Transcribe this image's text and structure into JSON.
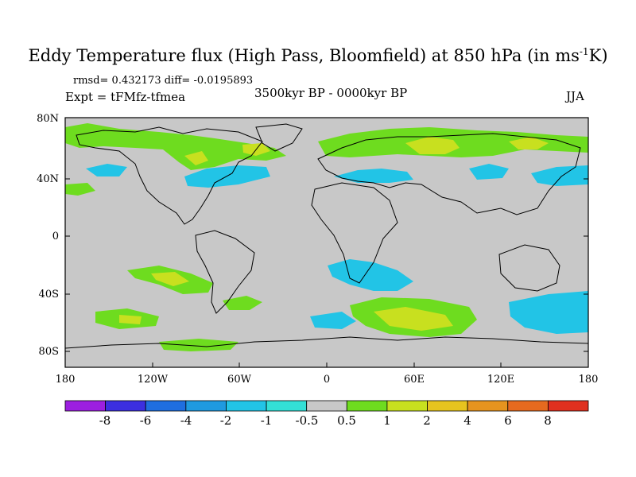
{
  "title": {
    "main": "Eddy Temperature flux (High Pass, Bloomfield) at 850 hPa (in ms",
    "sup": "-1",
    "end": "K)"
  },
  "stats": "rmsd= 0.432173 diff= -0.0195893",
  "expt": "Expt = tFMfz-tfmea",
  "period": "3500kyr BP - 0000kyr BP",
  "season": "JJA",
  "lat_labels": [
    "80N",
    "40N",
    "0",
    "40S",
    "80S"
  ],
  "lon_labels": [
    "180",
    "120W",
    "60W",
    "0",
    "60E",
    "120E",
    "180"
  ],
  "colorbar": {
    "labels": [
      "-8",
      "-6",
      "-4",
      "-2",
      "-1",
      "-0.5",
      "0.5",
      "1",
      "2",
      "4",
      "6",
      "8"
    ],
    "colors": [
      "#9c1fe0",
      "#3c2fe0",
      "#1f6ee0",
      "#1f9ae0",
      "#22c4e6",
      "#33e0d6",
      "#c8c8c8",
      "#6edc1f",
      "#c8e01f",
      "#e6c41f",
      "#e6941f",
      "#e66a1f",
      "#e0301f"
    ]
  },
  "palette": {
    "neutral": "#c8c8c8",
    "light_green": "#6edc1f",
    "yellow_green": "#c8e01f",
    "light_blue": "#22c4e6",
    "cyan": "#33e0d6"
  }
}
